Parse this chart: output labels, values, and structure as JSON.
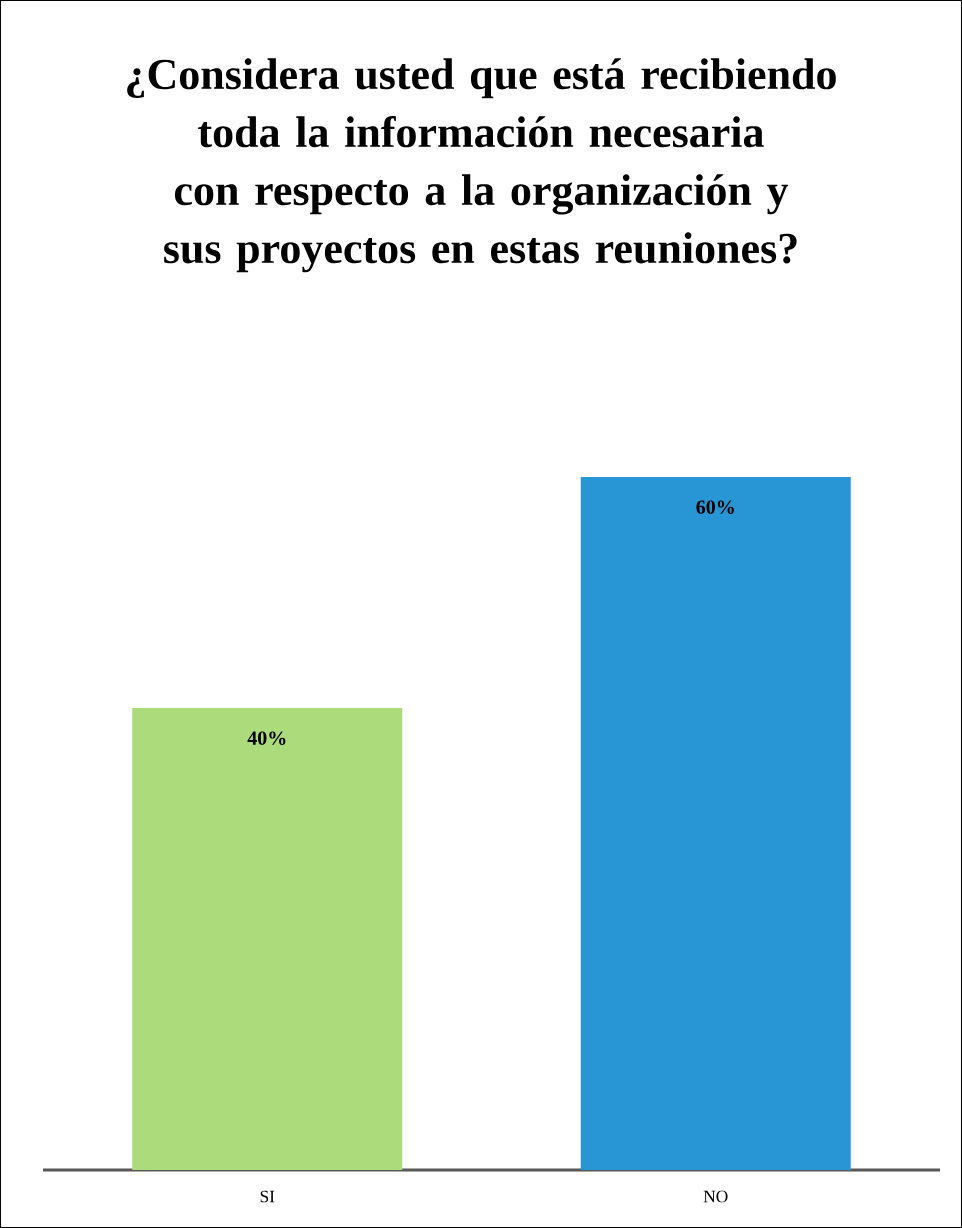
{
  "chart_data": {
    "type": "bar",
    "title": "¿Considera usted que está recibiendo toda la información necesaria con respecto a la organización y sus proyectos en estas reuniones?",
    "categories": [
      "SI",
      "NO"
    ],
    "values": [
      40,
      60
    ],
    "colors": [
      "#acdb7c",
      "#2896d4"
    ],
    "value_labels": [
      "40%",
      "60%"
    ]
  }
}
